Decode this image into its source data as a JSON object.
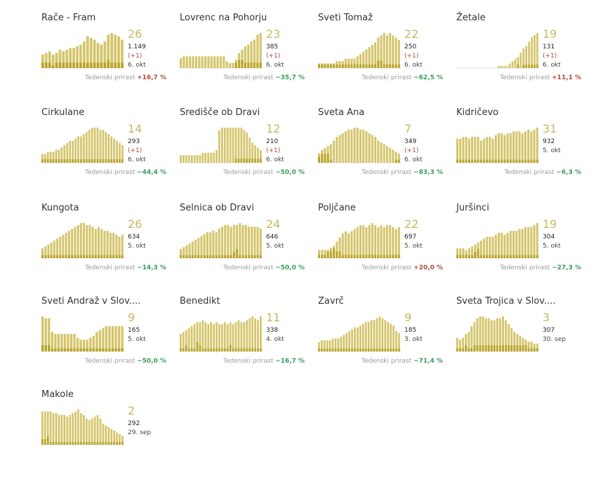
{
  "colors": {
    "bar": "#d4c56b",
    "bar_dark": "#b8a425",
    "number": "#c8b860",
    "positive": "#b04a3c",
    "negative": "#3a9c5b"
  },
  "growth_label": "Tedenski prirast",
  "chart_data": [
    {
      "type": "bar",
      "title": "Rače - Fram",
      "big": "26",
      "total": "1.149",
      "delta": "(+1)",
      "date": "6. okt",
      "growth": "+16,7 %",
      "trend": "up",
      "values": [
        8,
        9,
        10,
        8,
        9,
        11,
        10,
        11,
        12,
        12,
        13,
        14,
        16,
        19,
        18,
        17,
        15,
        14,
        16,
        20,
        21,
        20,
        19,
        17
      ],
      "new": [
        2,
        2,
        2,
        1,
        2,
        2,
        2,
        2,
        2,
        2,
        2,
        2,
        2,
        2,
        2,
        2,
        2,
        2,
        2,
        3,
        2,
        2,
        2,
        2
      ]
    },
    {
      "type": "bar",
      "title": "Lovrenc na Pohorju",
      "big": "23",
      "total": "385",
      "delta": "(+1)",
      "date": "6. okt",
      "growth": "−35,7 %",
      "trend": "down",
      "values": [
        6,
        7,
        7,
        7,
        7,
        7,
        7,
        7,
        7,
        7,
        7,
        7,
        7,
        7,
        7,
        4,
        3,
        3,
        5,
        9,
        11,
        13,
        14,
        16,
        17,
        20,
        21
      ],
      "new": [
        0,
        0,
        0,
        0,
        0,
        0,
        0,
        0,
        0,
        0,
        0,
        0,
        0,
        0,
        0,
        0,
        0,
        0,
        2,
        3,
        3,
        2,
        2,
        2,
        2,
        2,
        2
      ]
    },
    {
      "type": "bar",
      "title": "Sveti Tomaž",
      "big": "22",
      "total": "250",
      "delta": "(+1)",
      "date": "6. okt",
      "growth": "−62,5 %",
      "trend": "down",
      "values": [
        2,
        2,
        2,
        2,
        2,
        2,
        3,
        3,
        3,
        4,
        4,
        4,
        4,
        5,
        6,
        7,
        8,
        9,
        10,
        11,
        13,
        14,
        15,
        14,
        15,
        14,
        13,
        12
      ],
      "new": [
        1,
        1,
        1,
        1,
        1,
        1,
        1,
        1,
        1,
        1,
        1,
        1,
        1,
        1,
        1,
        1,
        1,
        1,
        1,
        1,
        2,
        2,
        1,
        1,
        1,
        1,
        1,
        1
      ]
    },
    {
      "type": "bar",
      "title": "Žetale",
      "big": "19",
      "total": "131",
      "delta": "(+1)",
      "date": "6. okt",
      "growth": "+11,1 %",
      "trend": "up",
      "values": [
        0,
        0,
        0,
        0,
        0,
        0,
        0,
        0,
        0,
        0,
        0,
        0,
        0,
        0,
        0,
        1,
        1,
        1,
        1,
        2,
        3,
        4,
        5,
        7,
        9,
        10,
        12,
        14,
        15,
        16
      ],
      "new": [
        0,
        0,
        0,
        0,
        0,
        0,
        0,
        0,
        0,
        0,
        0,
        0,
        0,
        0,
        0,
        0,
        0,
        0,
        0,
        0,
        0,
        0,
        1,
        0,
        1,
        1,
        1,
        1,
        1,
        1
      ]
    },
    {
      "type": "bar",
      "title": "Cirkulane",
      "big": "14",
      "total": "293",
      "delta": "(+1)",
      "date": "6. okt",
      "growth": "−44,4 %",
      "trend": "down",
      "values": [
        4,
        4,
        5,
        5,
        5,
        6,
        6,
        7,
        8,
        9,
        10,
        10,
        11,
        12,
        12,
        13,
        14,
        15,
        16,
        16,
        16,
        15,
        15,
        14,
        13,
        12,
        11,
        10,
        9,
        8
      ],
      "new": [
        1,
        1,
        1,
        1,
        1,
        1,
        1,
        1,
        1,
        1,
        1,
        1,
        1,
        1,
        1,
        1,
        1,
        1,
        1,
        1,
        1,
        1,
        1,
        1,
        1,
        1,
        1,
        1,
        1,
        1
      ]
    },
    {
      "type": "bar",
      "title": "Središče ob Dravi",
      "big": "12",
      "total": "210",
      "delta": "(+1)",
      "date": "6. okt",
      "growth": "−50,0 %",
      "trend": "down",
      "values": [
        3,
        3,
        3,
        3,
        3,
        3,
        3,
        3,
        4,
        4,
        4,
        4,
        4,
        5,
        13,
        14,
        14,
        14,
        14,
        14,
        14,
        14,
        14,
        13,
        12,
        10,
        8,
        7,
        6,
        5
      ],
      "new": [
        0,
        0,
        0,
        0,
        0,
        0,
        0,
        0,
        0,
        0,
        0,
        0,
        0,
        0,
        0,
        0,
        0,
        0,
        0,
        0,
        1,
        1,
        1,
        1,
        1,
        1,
        1,
        1,
        1,
        1
      ]
    },
    {
      "type": "bar",
      "title": "Sveta Ana",
      "big": "7",
      "total": "349",
      "delta": "(+1)",
      "date": "6. okt",
      "growth": "−83,3 %",
      "trend": "down",
      "values": [
        5,
        7,
        8,
        9,
        10,
        12,
        14,
        15,
        16,
        17,
        18,
        18,
        19,
        19,
        18,
        18,
        17,
        16,
        15,
        14,
        12,
        11,
        10,
        9,
        8,
        7,
        6,
        5
      ],
      "new": [
        2,
        3,
        3,
        3,
        1,
        0,
        0,
        0,
        0,
        0,
        0,
        0,
        0,
        0,
        0,
        0,
        0,
        0,
        0,
        0,
        0,
        0,
        0,
        0,
        0,
        0,
        1,
        1
      ]
    },
    {
      "type": "bar",
      "title": "Kidričevo",
      "big": "31",
      "total": "932",
      "delta": "",
      "date": "5. okt",
      "growth": "−6,3 %",
      "trend": "down",
      "values": [
        13,
        13,
        14,
        14,
        13,
        14,
        14,
        14,
        12,
        13,
        14,
        14,
        13,
        15,
        16,
        16,
        15,
        16,
        16,
        17,
        17,
        17,
        16,
        17,
        18,
        17,
        18,
        19
      ],
      "new": [
        1,
        1,
        1,
        1,
        1,
        1,
        1,
        1,
        1,
        1,
        1,
        1,
        1,
        1,
        1,
        1,
        1,
        1,
        1,
        1,
        1,
        1,
        1,
        1,
        1,
        1,
        1,
        1
      ]
    },
    {
      "type": "bar",
      "title": "Kungota",
      "big": "26",
      "total": "634",
      "delta": "",
      "date": "5. okt",
      "growth": "−14,3 %",
      "trend": "down",
      "values": [
        5,
        6,
        7,
        8,
        9,
        10,
        11,
        12,
        13,
        14,
        15,
        16,
        17,
        18,
        18,
        17,
        17,
        16,
        15,
        16,
        15,
        14,
        14,
        13,
        13,
        12,
        11,
        12
      ],
      "new": [
        1,
        1,
        1,
        1,
        1,
        1,
        1,
        1,
        1,
        1,
        1,
        1,
        1,
        1,
        1,
        1,
        1,
        1,
        1,
        1,
        1,
        1,
        1,
        1,
        1,
        1,
        1,
        1
      ]
    },
    {
      "type": "bar",
      "title": "Selnica ob Dravi",
      "big": "24",
      "total": "646",
      "delta": "",
      "date": "5. okt",
      "growth": "−50,0 %",
      "trend": "down",
      "values": [
        5,
        6,
        7,
        8,
        9,
        10,
        11,
        12,
        13,
        14,
        14,
        15,
        14,
        16,
        17,
        18,
        18,
        17,
        18,
        18,
        19,
        18,
        18,
        17,
        17,
        17,
        17,
        16
      ],
      "new": [
        1,
        1,
        1,
        1,
        1,
        1,
        1,
        1,
        1,
        1,
        1,
        1,
        1,
        1,
        1,
        1,
        1,
        1,
        2,
        3,
        1,
        1,
        1,
        1,
        1,
        1,
        1,
        1
      ]
    },
    {
      "type": "bar",
      "title": "Poljčane",
      "big": "22",
      "total": "697",
      "delta": "",
      "date": "5. okt",
      "growth": "+20,0 %",
      "trend": "up",
      "values": [
        4,
        4,
        4,
        4,
        5,
        6,
        8,
        10,
        12,
        13,
        12,
        13,
        14,
        15,
        16,
        16,
        15,
        16,
        17,
        16,
        15,
        16,
        15,
        16,
        16,
        15,
        14,
        15
      ],
      "new": [
        1,
        1,
        1,
        2,
        2,
        3,
        2,
        2,
        1,
        1,
        1,
        1,
        1,
        1,
        1,
        1,
        1,
        1,
        1,
        1,
        1,
        1,
        1,
        1,
        1,
        1,
        1,
        1
      ]
    },
    {
      "type": "bar",
      "title": "Juršinci",
      "big": "19",
      "total": "304",
      "delta": "",
      "date": "5. okt",
      "growth": "−27,3 %",
      "trend": "down",
      "values": [
        5,
        5,
        5,
        4,
        5,
        6,
        7,
        8,
        9,
        10,
        11,
        11,
        11,
        12,
        13,
        13,
        12,
        13,
        14,
        14,
        14,
        15,
        15,
        16,
        16,
        16,
        17,
        18
      ],
      "new": [
        1,
        1,
        1,
        1,
        1,
        1,
        2,
        3,
        1,
        1,
        1,
        1,
        1,
        1,
        1,
        1,
        1,
        1,
        1,
        1,
        1,
        1,
        1,
        1,
        1,
        1,
        1,
        1
      ]
    },
    {
      "type": "bar",
      "title": "Sveti Andraž v Slov....",
      "big": "9",
      "total": "165",
      "delta": "",
      "date": "5. okt",
      "growth": "−50,0 %",
      "trend": "down",
      "values": [
        18,
        17,
        17,
        10,
        9,
        9,
        9,
        9,
        9,
        9,
        9,
        7,
        6,
        6,
        6,
        7,
        8,
        10,
        11,
        12,
        13,
        13,
        13,
        13,
        13,
        13
      ],
      "new": [
        2,
        2,
        2,
        1,
        1,
        1,
        1,
        1,
        1,
        1,
        1,
        1,
        1,
        1,
        1,
        1,
        1,
        1,
        1,
        1,
        1,
        1,
        1,
        1,
        1,
        1
      ]
    },
    {
      "type": "bar",
      "title": "Benedikt",
      "big": "11",
      "total": "338",
      "delta": "",
      "date": "4. okt",
      "growth": "−16,7 %",
      "trend": "down",
      "values": [
        9,
        10,
        11,
        12,
        13,
        14,
        15,
        15,
        16,
        15,
        14,
        15,
        14,
        15,
        14,
        14,
        15,
        14,
        15,
        14,
        15,
        16,
        15,
        15,
        16,
        17,
        18,
        17,
        16,
        18
      ],
      "new": [
        1,
        1,
        2,
        1,
        1,
        1,
        3,
        2,
        1,
        1,
        1,
        1,
        1,
        1,
        1,
        1,
        1,
        1,
        2,
        1,
        1,
        1,
        1,
        1,
        1,
        1,
        1,
        1,
        1,
        1
      ]
    },
    {
      "type": "bar",
      "title": "Zavrč",
      "big": "9",
      "total": "185",
      "delta": "",
      "date": "3. okt",
      "growth": "−71,4 %",
      "trend": "down",
      "values": [
        5,
        6,
        6,
        6,
        6,
        7,
        7,
        7,
        8,
        9,
        10,
        11,
        12,
        13,
        13,
        14,
        15,
        16,
        16,
        17,
        17,
        18,
        19,
        18,
        17,
        16,
        15,
        14,
        11,
        10
      ],
      "new": [
        1,
        1,
        1,
        1,
        1,
        1,
        1,
        1,
        1,
        1,
        1,
        1,
        1,
        1,
        1,
        1,
        1,
        1,
        1,
        1,
        1,
        1,
        1,
        1,
        1,
        1,
        1,
        1,
        1,
        1
      ]
    },
    {
      "type": "bar",
      "title": "Sveta Trojica v Slov....",
      "big": "3",
      "total": "307",
      "delta": "",
      "date": "30. sep",
      "growth": "",
      "trend": "down",
      "values": [
        7,
        6,
        7,
        9,
        10,
        13,
        15,
        17,
        18,
        18,
        17,
        17,
        16,
        16,
        17,
        17,
        18,
        16,
        14,
        12,
        10,
        9,
        8,
        7,
        6,
        5,
        5,
        4,
        4
      ],
      "new": [
        1,
        1,
        1,
        2,
        1,
        1,
        2,
        2,
        2,
        2,
        2,
        2,
        2,
        2,
        2,
        2,
        2,
        2,
        2,
        2,
        2,
        2,
        2,
        2,
        2,
        1,
        1,
        1,
        1
      ]
    },
    {
      "type": "bar",
      "title": "Makole",
      "big": "2",
      "total": "292",
      "delta": "",
      "date": "29. sep",
      "growth": "",
      "trend": "down",
      "values": [
        19,
        19,
        19,
        19,
        18,
        18,
        17,
        17,
        17,
        16,
        17,
        18,
        19,
        20,
        18,
        17,
        15,
        14,
        15,
        16,
        17,
        15,
        12,
        11,
        10,
        9,
        8,
        7,
        6,
        5
      ],
      "new": [
        2,
        2,
        3,
        1,
        1,
        1,
        1,
        1,
        1,
        1,
        1,
        1,
        1,
        1,
        1,
        1,
        1,
        1,
        1,
        1,
        1,
        1,
        1,
        1,
        1,
        1,
        1,
        1,
        1,
        1
      ]
    }
  ]
}
